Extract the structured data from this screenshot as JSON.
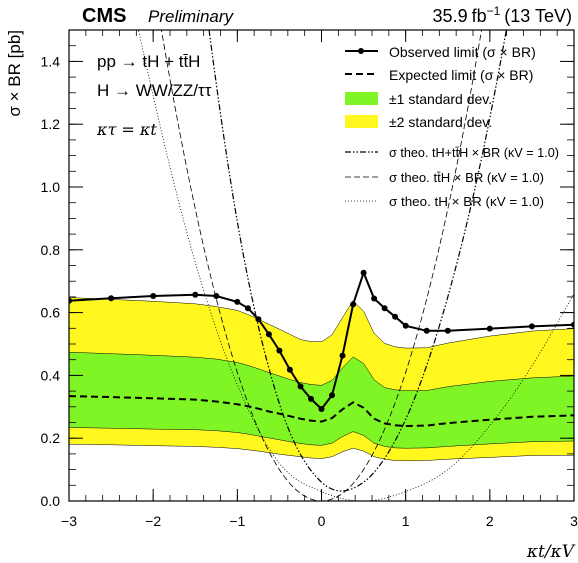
{
  "header": {
    "experiment": "CMS",
    "status": "Preliminary",
    "lumi": "35.9",
    "lumi_unit": "fb",
    "lumi_exp": "−1",
    "energy": "(13 TeV)"
  },
  "annotations": {
    "process": "pp → tH + tt̄H",
    "decay": "H → WW/ZZ/ττ",
    "assumption": "κτ = κt"
  },
  "legend": {
    "observed": "Observed limit (σ × BR)",
    "expected": "Expected limit (σ × BR)",
    "one_sigma": "±1 standard dev.",
    "two_sigma": "±2 standard dev.",
    "theo_tH_ttH": "σ theo. tH+tt̄H × BR (κV = 1.0)",
    "theo_ttH": "σ theo. tt̄H × BR (κV = 1.0)",
    "theo_tH": "σ theo. tH × BR (κV = 1.0)"
  },
  "colors": {
    "one_sigma_band": "#7ff526",
    "two_sigma_band": "#fff71e",
    "line": "#000000"
  },
  "chart_data": {
    "type": "line",
    "xlabel": "κt/κV",
    "ylabel": "σ × BR [pb]",
    "xlim": [
      -3,
      3
    ],
    "ylim": [
      0,
      1.5
    ],
    "x_ticks": [
      -3,
      -2,
      -1,
      0,
      1,
      2,
      3
    ],
    "x_tick_labels": [
      "−3",
      "−2",
      "−1",
      "0",
      "1",
      "2",
      "3"
    ],
    "y_ticks": [
      0,
      0.2,
      0.4,
      0.6,
      0.8,
      1.0,
      1.2,
      1.4
    ],
    "y_tick_labels": [
      "0.0",
      "0.2",
      "0.4",
      "0.6",
      "0.8",
      "1.0",
      "1.2",
      "1.4"
    ],
    "grid": false,
    "legend_position": "top-right",
    "x": [
      -3.0,
      -2.5,
      -2.0,
      -1.5,
      -1.25,
      -1.0,
      -0.875,
      -0.75,
      -0.625,
      -0.5,
      -0.375,
      -0.25,
      -0.125,
      0.0,
      0.125,
      0.25,
      0.375,
      0.5,
      0.625,
      0.75,
      0.875,
      1.0,
      1.25,
      1.5,
      2.0,
      2.5,
      3.0
    ],
    "series": [
      {
        "name": "Observed limit (σ × BR)",
        "style": "solid-markers",
        "values": [
          0.638,
          0.646,
          0.653,
          0.657,
          0.653,
          0.634,
          0.614,
          0.579,
          0.531,
          0.479,
          0.418,
          0.365,
          0.325,
          0.293,
          0.337,
          0.463,
          0.626,
          0.727,
          0.645,
          0.614,
          0.587,
          0.558,
          0.542,
          0.542,
          0.549,
          0.556,
          0.561
        ]
      },
      {
        "name": "Expected limit (σ × BR)",
        "style": "dashed",
        "values": [
          0.334,
          0.331,
          0.327,
          0.323,
          0.317,
          0.308,
          0.302,
          0.294,
          0.285,
          0.278,
          0.27,
          0.262,
          0.256,
          0.253,
          0.264,
          0.292,
          0.314,
          0.297,
          0.262,
          0.247,
          0.241,
          0.239,
          0.24,
          0.248,
          0.259,
          0.268,
          0.273
        ]
      },
      {
        "name": "±1 standard dev. upper",
        "values": [
          0.474,
          0.469,
          0.464,
          0.458,
          0.452,
          0.441,
          0.432,
          0.421,
          0.409,
          0.398,
          0.387,
          0.377,
          0.371,
          0.368,
          0.384,
          0.424,
          0.459,
          0.438,
          0.386,
          0.361,
          0.354,
          0.351,
          0.352,
          0.364,
          0.381,
          0.392,
          0.398
        ]
      },
      {
        "name": "±1 standard dev. lower",
        "values": [
          0.234,
          0.232,
          0.229,
          0.227,
          0.224,
          0.218,
          0.213,
          0.207,
          0.201,
          0.195,
          0.189,
          0.183,
          0.179,
          0.177,
          0.184,
          0.205,
          0.221,
          0.209,
          0.184,
          0.174,
          0.169,
          0.168,
          0.169,
          0.174,
          0.182,
          0.189,
          0.191
        ]
      },
      {
        "name": "±2 standard dev. upper",
        "values": [
          0.648,
          0.642,
          0.636,
          0.628,
          0.619,
          0.607,
          0.594,
          0.579,
          0.563,
          0.547,
          0.531,
          0.514,
          0.508,
          0.507,
          0.529,
          0.584,
          0.638,
          0.604,
          0.534,
          0.502,
          0.491,
          0.487,
          0.488,
          0.503,
          0.525,
          0.541,
          0.549
        ]
      },
      {
        "name": "±2 standard dev. lower",
        "values": [
          0.181,
          0.179,
          0.176,
          0.174,
          0.171,
          0.167,
          0.163,
          0.159,
          0.154,
          0.149,
          0.145,
          0.141,
          0.137,
          0.135,
          0.141,
          0.157,
          0.168,
          0.159,
          0.141,
          0.133,
          0.129,
          0.128,
          0.129,
          0.133,
          0.139,
          0.145,
          0.146
        ]
      }
    ],
    "theory": [
      {
        "name": "σ theo. tH+tt̄H × BR (κV = 1.0)",
        "style": "dash-dot",
        "x": [
          -3,
          -2.5,
          -2,
          -1.5,
          -1,
          -0.5,
          0,
          0.5,
          1,
          1.5,
          2,
          2.5,
          3
        ],
        "values": [
          6.4,
          4.62,
          3.1,
          1.85,
          0.89,
          0.31,
          0.06,
          0.06,
          0.26,
          0.65,
          1.22,
          2.0,
          3.0
        ]
      },
      {
        "name": "σ theo. tt̄H × BR (κV = 1.0)",
        "style": "dashed",
        "x": [
          -3,
          -2.5,
          -2,
          -1.5,
          -1,
          -0.5,
          0,
          0.5,
          1,
          1.5,
          2,
          2.5,
          3
        ],
        "values": [
          3.7,
          2.6,
          1.66,
          0.93,
          0.41,
          0.1,
          0.0,
          0.1,
          0.41,
          0.93,
          1.66,
          2.6,
          3.7
        ]
      },
      {
        "name": "σ theo. tH × BR (κV = 1.0)",
        "style": "dotted",
        "x": [
          -3,
          -2.5,
          -2,
          -1.5,
          -1,
          -0.5,
          0,
          0.5,
          1,
          1.5,
          2,
          2.5,
          3
        ],
        "values": [
          2.7,
          1.93,
          1.29,
          0.76,
          0.37,
          0.12,
          0.03,
          0.0,
          0.03,
          0.1,
          0.24,
          0.43,
          0.66
        ]
      }
    ]
  }
}
